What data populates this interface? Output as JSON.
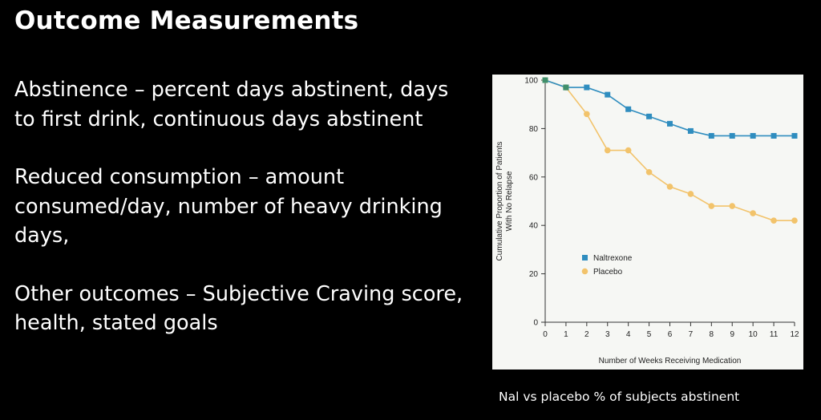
{
  "slide": {
    "title": "Outcome Measurements",
    "bullets": [
      "Abstinence – percent days abstinent, days to first drink, continuous days abstinent",
      "Reduced consumption –  amount consumed/day,  number of heavy drinking days,",
      "Other outcomes – Subjective Craving score,  health, stated goals"
    ],
    "caption": "Nal vs placebo % of subjects abstinent"
  },
  "chart_data": {
    "type": "line",
    "title": "",
    "xlabel": "Number of Weeks Receiving Medication",
    "ylabel": "Cumulative Proportion of Patients With No Relapse",
    "xlim": [
      0,
      12
    ],
    "ylim": [
      0,
      100
    ],
    "x": [
      0,
      1,
      2,
      3,
      4,
      5,
      6,
      7,
      8,
      9,
      10,
      11,
      12
    ],
    "x_ticks": [
      0,
      1,
      2,
      3,
      4,
      5,
      6,
      7,
      8,
      9,
      10,
      11,
      12
    ],
    "y_ticks": [
      0,
      20,
      40,
      60,
      80,
      100
    ],
    "series": [
      {
        "name": "Naltrexone",
        "color": "#2f8dbf",
        "marker": "square",
        "values": [
          100,
          97,
          97,
          94,
          88,
          85,
          82,
          79,
          77,
          77,
          77,
          77,
          77
        ]
      },
      {
        "name": "Placebo",
        "color": "#f2c36b",
        "marker": "circle",
        "values": [
          100,
          97,
          86,
          71,
          71,
          62,
          56,
          53,
          48,
          48,
          45,
          42,
          42
        ]
      }
    ],
    "legend_position": "lower-left",
    "grid": false
  }
}
